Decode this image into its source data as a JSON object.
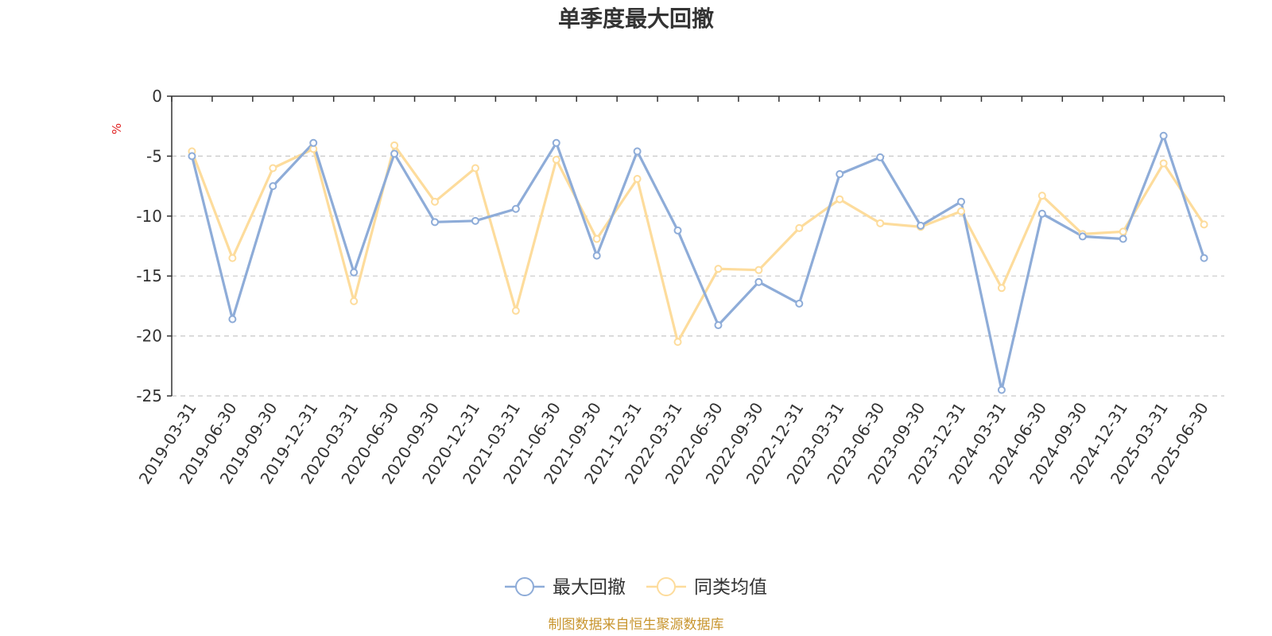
{
  "chart_data": {
    "type": "line",
    "title": "单季度最大回撤",
    "ylabel": "%",
    "ylim": [
      -25,
      0
    ],
    "yticks": [
      0,
      -5,
      -10,
      -15,
      -20,
      -25
    ],
    "grid": true,
    "legend_position": "bottom-center",
    "x": [
      "2019-03-31",
      "2019-06-30",
      "2019-09-30",
      "2019-12-31",
      "2020-03-31",
      "2020-06-30",
      "2020-09-30",
      "2020-12-31",
      "2021-03-31",
      "2021-06-30",
      "2021-09-30",
      "2021-12-31",
      "2022-03-31",
      "2022-06-30",
      "2022-09-30",
      "2022-12-31",
      "2023-03-31",
      "2023-06-30",
      "2023-09-30",
      "2023-12-31",
      "2024-03-31",
      "2024-06-30",
      "2024-09-30",
      "2024-12-31",
      "2025-03-31",
      "2025-06-30"
    ],
    "series": [
      {
        "name": "最大回撤",
        "color": "#8eacd8",
        "values": [
          -5.0,
          -18.6,
          -7.5,
          -3.9,
          -14.7,
          -4.8,
          -10.5,
          -10.4,
          -9.4,
          -3.9,
          -13.3,
          -4.6,
          -11.2,
          -19.1,
          -15.5,
          -17.3,
          -6.5,
          -5.1,
          -10.8,
          -8.8,
          -24.5,
          -9.8,
          -11.7,
          -11.9,
          -3.3,
          -13.5
        ]
      },
      {
        "name": "同类均值",
        "color": "#fddc9c",
        "values": [
          -4.6,
          -13.5,
          -6.0,
          -4.4,
          -17.1,
          -4.1,
          -8.8,
          -6.0,
          -17.9,
          -5.3,
          -11.9,
          -6.9,
          -20.5,
          -14.4,
          -14.5,
          -11.0,
          -8.6,
          -10.6,
          -10.9,
          -9.6,
          -16.0,
          -8.3,
          -11.5,
          -11.3,
          -5.6,
          -10.7
        ]
      }
    ],
    "source": "制图数据来自恒生聚源数据库",
    "source_color": "#c8952e",
    "unit_color": "#e02020",
    "axis_color": "#333333",
    "grid_color": "#c8c8c8"
  }
}
